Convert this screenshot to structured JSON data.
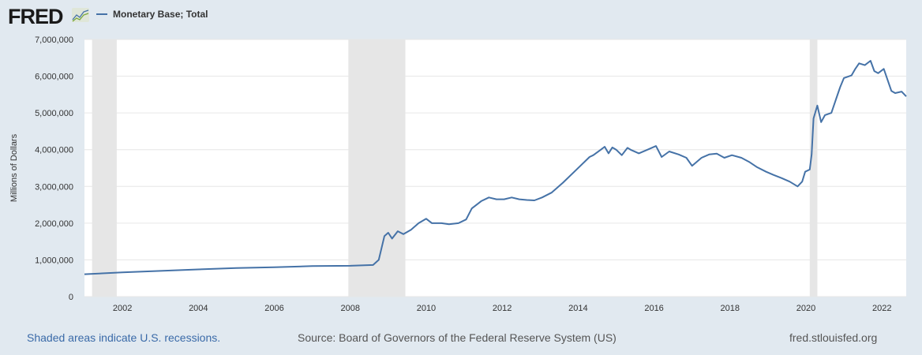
{
  "header": {
    "logo": "FRED",
    "legend_label": "Monetary Base; Total"
  },
  "footer": {
    "recession_note": "Shaded areas indicate U.S. recessions.",
    "source": "Source: Board of Governors of the Federal Reserve System (US)",
    "site": "fred.stlouisfed.org"
  },
  "chart_data": {
    "type": "line",
    "title": "Monetary Base; Total",
    "xlabel": "",
    "ylabel": "Millions of Dollars",
    "xlim": [
      2001.0,
      2022.64
    ],
    "ylim": [
      0,
      7000000
    ],
    "grid": true,
    "legend_placement": "top-left",
    "line_color": "#4572a7",
    "x_ticks": [
      2002,
      2004,
      2006,
      2008,
      2010,
      2012,
      2014,
      2016,
      2018,
      2020,
      2022
    ],
    "y_ticks": [
      0,
      1000000,
      2000000,
      3000000,
      4000000,
      5000000,
      6000000,
      7000000
    ],
    "y_tick_labels": [
      "0",
      "1,000,000",
      "2,000,000",
      "3,000,000",
      "4,000,000",
      "5,000,000",
      "6,000,000",
      "7,000,000"
    ],
    "recessions": [
      [
        2001.2,
        2001.85
      ],
      [
        2007.95,
        2009.45
      ],
      [
        2020.1,
        2020.3
      ]
    ],
    "series": [
      {
        "name": "Monetary Base; Total",
        "points": [
          [
            2001.0,
            610000
          ],
          [
            2002.0,
            660000
          ],
          [
            2003.0,
            700000
          ],
          [
            2004.0,
            740000
          ],
          [
            2005.0,
            780000
          ],
          [
            2006.0,
            800000
          ],
          [
            2007.0,
            830000
          ],
          [
            2008.0,
            840000
          ],
          [
            2008.6,
            860000
          ],
          [
            2008.75,
            1000000
          ],
          [
            2008.9,
            1650000
          ],
          [
            2009.0,
            1740000
          ],
          [
            2009.1,
            1580000
          ],
          [
            2009.25,
            1780000
          ],
          [
            2009.4,
            1700000
          ],
          [
            2009.6,
            1820000
          ],
          [
            2009.8,
            2000000
          ],
          [
            2010.0,
            2120000
          ],
          [
            2010.15,
            2000000
          ],
          [
            2010.4,
            2000000
          ],
          [
            2010.6,
            1970000
          ],
          [
            2010.85,
            2000000
          ],
          [
            2011.05,
            2100000
          ],
          [
            2011.2,
            2400000
          ],
          [
            2011.45,
            2600000
          ],
          [
            2011.65,
            2700000
          ],
          [
            2011.85,
            2650000
          ],
          [
            2012.05,
            2650000
          ],
          [
            2012.25,
            2700000
          ],
          [
            2012.45,
            2650000
          ],
          [
            2012.65,
            2630000
          ],
          [
            2012.85,
            2620000
          ],
          [
            2013.05,
            2700000
          ],
          [
            2013.3,
            2830000
          ],
          [
            2013.6,
            3100000
          ],
          [
            2013.95,
            3450000
          ],
          [
            2014.3,
            3800000
          ],
          [
            2014.4,
            3850000
          ],
          [
            2014.6,
            4000000
          ],
          [
            2014.7,
            4080000
          ],
          [
            2014.8,
            3900000
          ],
          [
            2014.9,
            4060000
          ],
          [
            2015.0,
            4000000
          ],
          [
            2015.15,
            3850000
          ],
          [
            2015.3,
            4050000
          ],
          [
            2015.4,
            3990000
          ],
          [
            2015.6,
            3900000
          ],
          [
            2015.83,
            4000000
          ],
          [
            2016.05,
            4100000
          ],
          [
            2016.2,
            3800000
          ],
          [
            2016.4,
            3950000
          ],
          [
            2016.65,
            3870000
          ],
          [
            2016.85,
            3780000
          ],
          [
            2017.0,
            3560000
          ],
          [
            2017.25,
            3780000
          ],
          [
            2017.45,
            3870000
          ],
          [
            2017.65,
            3890000
          ],
          [
            2017.85,
            3780000
          ],
          [
            2018.05,
            3850000
          ],
          [
            2018.3,
            3780000
          ],
          [
            2018.5,
            3670000
          ],
          [
            2018.7,
            3530000
          ],
          [
            2018.95,
            3400000
          ],
          [
            2019.15,
            3310000
          ],
          [
            2019.35,
            3230000
          ],
          [
            2019.57,
            3130000
          ],
          [
            2019.78,
            3000000
          ],
          [
            2019.9,
            3130000
          ],
          [
            2019.98,
            3400000
          ],
          [
            2020.1,
            3460000
          ],
          [
            2020.15,
            3870000
          ],
          [
            2020.2,
            4850000
          ],
          [
            2020.3,
            5200000
          ],
          [
            2020.4,
            4750000
          ],
          [
            2020.5,
            4940000
          ],
          [
            2020.67,
            5000000
          ],
          [
            2020.8,
            5400000
          ],
          [
            2020.9,
            5700000
          ],
          [
            2021.0,
            5950000
          ],
          [
            2021.2,
            6020000
          ],
          [
            2021.3,
            6200000
          ],
          [
            2021.4,
            6350000
          ],
          [
            2021.55,
            6300000
          ],
          [
            2021.7,
            6420000
          ],
          [
            2021.8,
            6140000
          ],
          [
            2021.9,
            6080000
          ],
          [
            2022.05,
            6200000
          ],
          [
            2022.25,
            5600000
          ],
          [
            2022.35,
            5540000
          ],
          [
            2022.52,
            5580000
          ],
          [
            2022.64,
            5450000
          ]
        ]
      }
    ]
  }
}
